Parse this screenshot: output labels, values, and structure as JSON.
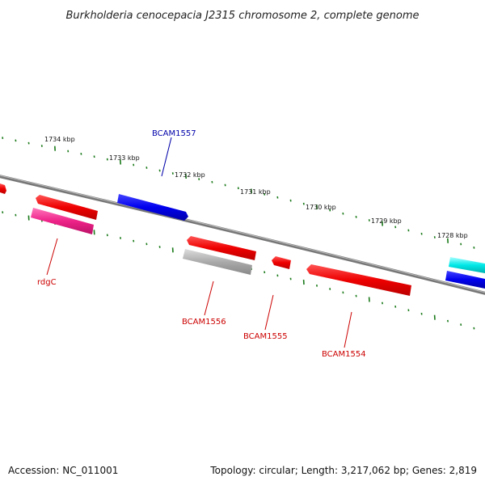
{
  "title": "Burkholderia cenocepacia J2315 chromosome 2, complete genome",
  "footer": {
    "accession": "Accession: NC_011001",
    "summary": "Topology: circular; Length: 3,217,062 bp; Genes: 2,819"
  },
  "colors": {
    "backbone": "#777777",
    "tick": "#1a7a1a",
    "forward_gene": "#0000ee",
    "reverse_gene": "#ee0000",
    "cyan_gene": "#00e0e0",
    "magenta_gene": "#ee2288",
    "gray_gene": "#aaaaaa",
    "blue_label": "#0000aa",
    "red_label": "#cc0000"
  },
  "scale_labels": [
    "1734 kbp",
    "1733 kbp",
    "1732 kbp",
    "1731 kbp",
    "1730 kbp",
    "1729 kbp",
    "1728 kbp"
  ],
  "gene_labels": {
    "BCAM1557": "BCAM1557",
    "rdgC": "rdgC",
    "BCAM1556": "BCAM1556",
    "BCAM1555": "BCAM1555",
    "BCAM1554": "BCAM1554"
  }
}
